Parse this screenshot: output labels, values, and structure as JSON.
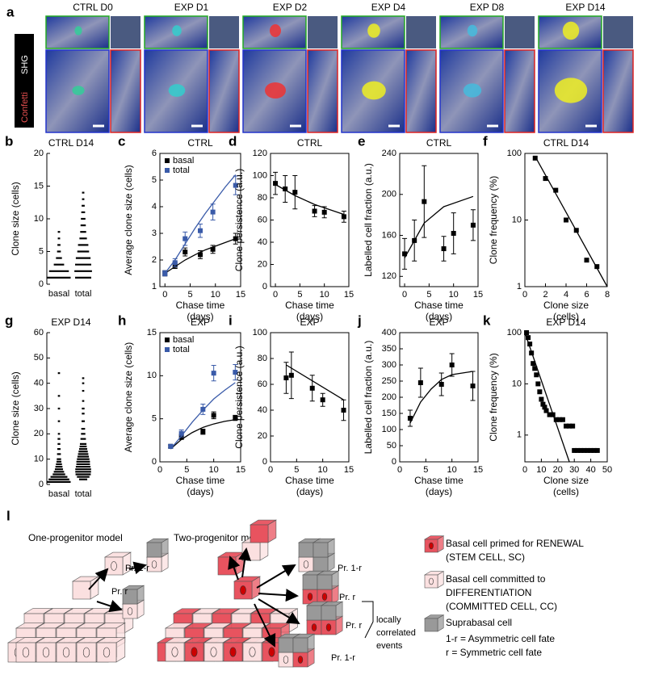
{
  "images": {
    "panel": "a",
    "stain_label": "Confetti",
    "shg_label": "SHG",
    "labels": [
      "CTRL D0",
      "EXP D1",
      "EXP D2",
      "EXP D4",
      "EXP D8",
      "EXP D14"
    ]
  },
  "chart_data": [
    {
      "type": "strip",
      "panel": "b",
      "title": "CTRL D14",
      "ylabel": "Clone size (cells)",
      "categories": [
        "basal",
        "total"
      ],
      "ylim": [
        0,
        20
      ],
      "yticks": [
        0,
        5,
        10,
        15,
        20
      ],
      "sizes": [
        [
          1,
          2,
          3,
          4,
          5,
          6,
          7,
          8
        ],
        [
          1,
          2,
          3,
          4,
          5,
          6,
          7,
          8,
          9,
          10,
          11,
          12,
          13,
          14
        ]
      ],
      "counts": [
        [
          30,
          25,
          12,
          6,
          3,
          2,
          1,
          1
        ],
        [
          20,
          22,
          20,
          18,
          14,
          12,
          8,
          6,
          5,
          4,
          3,
          2,
          1,
          1
        ]
      ]
    },
    {
      "type": "line",
      "panel": "c",
      "title": "CTRL",
      "ylabel": "Average clone size (cells)",
      "xlabel": [
        "Chase time",
        "(days)"
      ],
      "xlim": [
        -1,
        15
      ],
      "xticks": [
        0,
        5,
        10,
        15
      ],
      "ylim": [
        1,
        6
      ],
      "yticks": [
        1,
        2,
        3,
        4,
        5,
        6
      ],
      "legend": "upper left",
      "series": [
        {
          "name": "basal",
          "color": "#000000",
          "x": [
            0,
            2,
            4,
            7,
            9.5,
            14
          ],
          "values": [
            1.5,
            1.8,
            2.3,
            2.2,
            2.4,
            2.8
          ],
          "errors": [
            0.1,
            0.12,
            0.15,
            0.15,
            0.15,
            0.2
          ],
          "fit_x": [
            0,
            2,
            4,
            6,
            8,
            10,
            12,
            14
          ],
          "fit_values": [
            1.5,
            1.75,
            2.0,
            2.2,
            2.38,
            2.52,
            2.66,
            2.8
          ]
        },
        {
          "name": "total",
          "color": "#3a5ba9",
          "x": [
            0,
            2,
            4,
            7,
            9.5,
            14
          ],
          "values": [
            1.5,
            1.9,
            2.8,
            3.1,
            3.8,
            4.8
          ],
          "errors": [
            0.1,
            0.15,
            0.25,
            0.25,
            0.3,
            0.35
          ],
          "fit_x": [
            0,
            2,
            4,
            6,
            8,
            10,
            12,
            14
          ],
          "fit_values": [
            1.5,
            2.0,
            2.6,
            3.2,
            3.75,
            4.25,
            4.75,
            5.2
          ]
        }
      ]
    },
    {
      "type": "line",
      "panel": "d",
      "title": "CTRL",
      "ylabel": "Clone persistence (a.u.)",
      "xlabel": [
        "Chase time",
        "(days)"
      ],
      "xlim": [
        -1,
        15
      ],
      "xticks": [
        0,
        5,
        10,
        15
      ],
      "ylim": [
        0,
        120
      ],
      "yticks": [
        0,
        20,
        40,
        60,
        80,
        100,
        120
      ],
      "series": [
        {
          "color": "#000000",
          "x": [
            0,
            2,
            4,
            8,
            10,
            14
          ],
          "values": [
            93,
            88,
            85,
            68,
            67,
            63
          ],
          "errors": [
            10,
            12,
            15,
            5,
            5,
            5
          ],
          "fit_x": [
            0,
            4,
            8,
            14
          ],
          "fit_values": [
            92,
            82,
            74,
            65
          ]
        }
      ]
    },
    {
      "type": "line",
      "panel": "e",
      "title": "CTRL",
      "ylabel": "Labelled cell fraction (a.u.)",
      "xlabel": [
        "Chase time",
        "(days)"
      ],
      "xlim": [
        -1,
        15
      ],
      "xticks": [
        0,
        5,
        10,
        15
      ],
      "ylim": [
        110,
        240
      ],
      "yticks": [
        120,
        160,
        200,
        240
      ],
      "series": [
        {
          "color": "#000000",
          "x": [
            0,
            2,
            4,
            8,
            10,
            14
          ],
          "values": [
            142,
            155,
            193,
            147,
            162,
            170
          ],
          "errors": [
            15,
            20,
            35,
            12,
            20,
            15
          ],
          "fit_x": [
            0,
            4,
            8,
            14
          ],
          "fit_values": [
            138,
            172,
            188,
            198
          ]
        }
      ]
    },
    {
      "type": "line",
      "panel": "f",
      "title": "CTRL D14",
      "ylabel": "Clone frequency (%)",
      "xlabel": [
        "Clone size",
        "(cells)"
      ],
      "xlim": [
        0,
        8
      ],
      "xticks": [
        0,
        2,
        4,
        6,
        8
      ],
      "ylim": [
        1,
        100
      ],
      "yticks": [
        1,
        10,
        100
      ],
      "log_y": true,
      "series": [
        {
          "color": "#000000",
          "x": [
            1,
            2,
            3,
            4,
            5,
            6,
            7
          ],
          "values": [
            85,
            42,
            28,
            10,
            7,
            2.5,
            2
          ],
          "fit_x": [
            1,
            8
          ],
          "fit_values": [
            90,
            1
          ]
        }
      ]
    },
    {
      "type": "strip",
      "panel": "g",
      "title": "EXP D14",
      "ylabel": "Clone size (cells)",
      "categories": [
        "basal",
        "total"
      ],
      "ylim": [
        0,
        60
      ],
      "yticks": [
        0,
        10,
        20,
        30,
        40,
        50,
        60
      ],
      "sizes": [
        [
          1,
          2,
          3,
          4,
          5,
          6,
          7,
          8,
          9,
          10,
          12,
          14,
          16,
          18,
          20,
          25,
          30,
          35,
          44
        ],
        [
          2,
          3,
          4,
          5,
          6,
          7,
          8,
          9,
          10,
          11,
          12,
          13,
          14,
          15,
          16,
          18,
          20,
          22,
          25,
          28,
          30,
          33,
          37,
          40,
          42
        ]
      ],
      "counts": [
        [
          40,
          35,
          28,
          20,
          16,
          12,
          10,
          8,
          6,
          5,
          4,
          3,
          2,
          2,
          1,
          1,
          1,
          1,
          1
        ],
        [
          12,
          20,
          25,
          26,
          26,
          24,
          22,
          22,
          20,
          18,
          16,
          14,
          12,
          10,
          9,
          7,
          5,
          4,
          3,
          2,
          2,
          1,
          1,
          1,
          1
        ]
      ]
    },
    {
      "type": "line",
      "panel": "h",
      "title": "EXP",
      "ylabel": "Average clone size (cells)",
      "xlabel": [
        "Chase time",
        "(days)"
      ],
      "xlim": [
        0,
        15
      ],
      "xticks": [
        0,
        5,
        10,
        15
      ],
      "ylim": [
        0,
        15
      ],
      "yticks": [
        0,
        5,
        10,
        15
      ],
      "legend": "upper left",
      "series": [
        {
          "name": "basal",
          "color": "#000000",
          "x": [
            2,
            4,
            8,
            10,
            14
          ],
          "values": [
            1.8,
            2.9,
            3.5,
            5.4,
            5.1
          ],
          "errors": [
            0.15,
            0.3,
            0.3,
            0.4,
            0.3
          ],
          "fit_x": [
            2,
            4,
            6,
            8,
            10,
            12,
            14
          ],
          "fit_values": [
            1.5,
            2.6,
            3.4,
            4.0,
            4.4,
            4.7,
            4.9
          ]
        },
        {
          "name": "total",
          "color": "#3a5ba9",
          "x": [
            2,
            4,
            8,
            10,
            14
          ],
          "values": [
            1.8,
            3.3,
            6.1,
            10.3,
            10.4
          ],
          "errors": [
            0.2,
            0.4,
            0.6,
            0.9,
            0.9
          ],
          "fit_x": [
            2,
            4,
            6,
            8,
            10,
            12,
            14
          ],
          "fit_values": [
            1.5,
            3.0,
            4.6,
            6.0,
            7.3,
            8.3,
            9.2
          ]
        }
      ]
    },
    {
      "type": "line",
      "panel": "i",
      "title": "EXP",
      "ylabel": "Clone persistence (a.u.)",
      "xlabel": [
        "Chase time",
        "(days)"
      ],
      "xlim": [
        0,
        15
      ],
      "xticks": [
        0,
        5,
        10,
        15
      ],
      "ylim": [
        0,
        100
      ],
      "yticks": [
        0,
        20,
        40,
        60,
        80,
        100
      ],
      "series": [
        {
          "color": "#000000",
          "x": [
            3,
            4,
            8,
            10,
            14
          ],
          "values": [
            65,
            67,
            57,
            48,
            40
          ],
          "errors": [
            12,
            18,
            10,
            5,
            8
          ],
          "fit_x": [
            3,
            14
          ],
          "fit_values": [
            75,
            48
          ]
        }
      ]
    },
    {
      "type": "line",
      "panel": "j",
      "title": "EXP",
      "ylabel": "Labelled cell fraction (a.u.)",
      "xlabel": [
        "Chase time",
        "(days)"
      ],
      "xlim": [
        0,
        15
      ],
      "xticks": [
        0,
        5,
        10,
        15
      ],
      "ylim": [
        0,
        400
      ],
      "yticks": [
        0,
        50,
        100,
        150,
        200,
        250,
        300,
        350,
        400
      ],
      "series": [
        {
          "color": "#000000",
          "x": [
            2,
            4,
            8,
            10,
            14
          ],
          "values": [
            135,
            245,
            240,
            300,
            235
          ],
          "errors": [
            25,
            45,
            35,
            35,
            45
          ],
          "fit_x": [
            2,
            4,
            6,
            8,
            10,
            14
          ],
          "fit_values": [
            120,
            185,
            225,
            255,
            270,
            280
          ]
        }
      ]
    },
    {
      "type": "line",
      "panel": "k",
      "title": "EXP D14",
      "ylabel": "Clone frequency (%)",
      "xlabel": [
        "Clone size",
        "(cells)"
      ],
      "xlim": [
        0,
        50
      ],
      "xticks": [
        0,
        10,
        20,
        30,
        40,
        50
      ],
      "ylim": [
        0.3,
        100
      ],
      "yticks": [
        1,
        10,
        100
      ],
      "log_y": true,
      "series": [
        {
          "color": "#000000",
          "x": [
            1,
            2,
            3,
            4,
            5,
            6,
            7,
            8,
            9,
            10,
            11,
            12,
            13,
            15,
            17,
            19,
            21,
            23,
            25,
            27,
            29,
            30,
            32,
            34,
            36,
            38,
            40,
            42,
            44
          ],
          "values": [
            100,
            80,
            60,
            40,
            25,
            20,
            15,
            10,
            7,
            5,
            4,
            3.5,
            3,
            2.5,
            2.5,
            2,
            2,
            2,
            1.5,
            1.5,
            1.5,
            0.5,
            0.5,
            0.5,
            0.5,
            0.5,
            0.5,
            0.5,
            0.5
          ],
          "fit_x": [
            0,
            27
          ],
          "fit_values": [
            100,
            0.3
          ]
        }
      ]
    }
  ],
  "diagram": {
    "panel": "l",
    "one_model": "One-progenitor model",
    "two_model": "Two-progenitor model",
    "one_fates": [
      "Pr. 1-r",
      "Pr. r"
    ],
    "two_fates": [
      "Pr. 1-r",
      "Pr. r",
      "Pr. r",
      "Pr. 1-r"
    ],
    "correlated": [
      "locally",
      "correlated",
      "events"
    ],
    "legend": [
      [
        "Basal cell primed for RENEWAL",
        "(STEM CELL, SC)"
      ],
      [
        "Basal cell committed to",
        "DIFFERENTIATION",
        "(COMMITTED CELL, CC)"
      ],
      [
        "Suprabasal cell"
      ]
    ],
    "notes": [
      "1-r = Asymmetric cell fate",
      "r = Symmetric cell fate"
    ]
  }
}
